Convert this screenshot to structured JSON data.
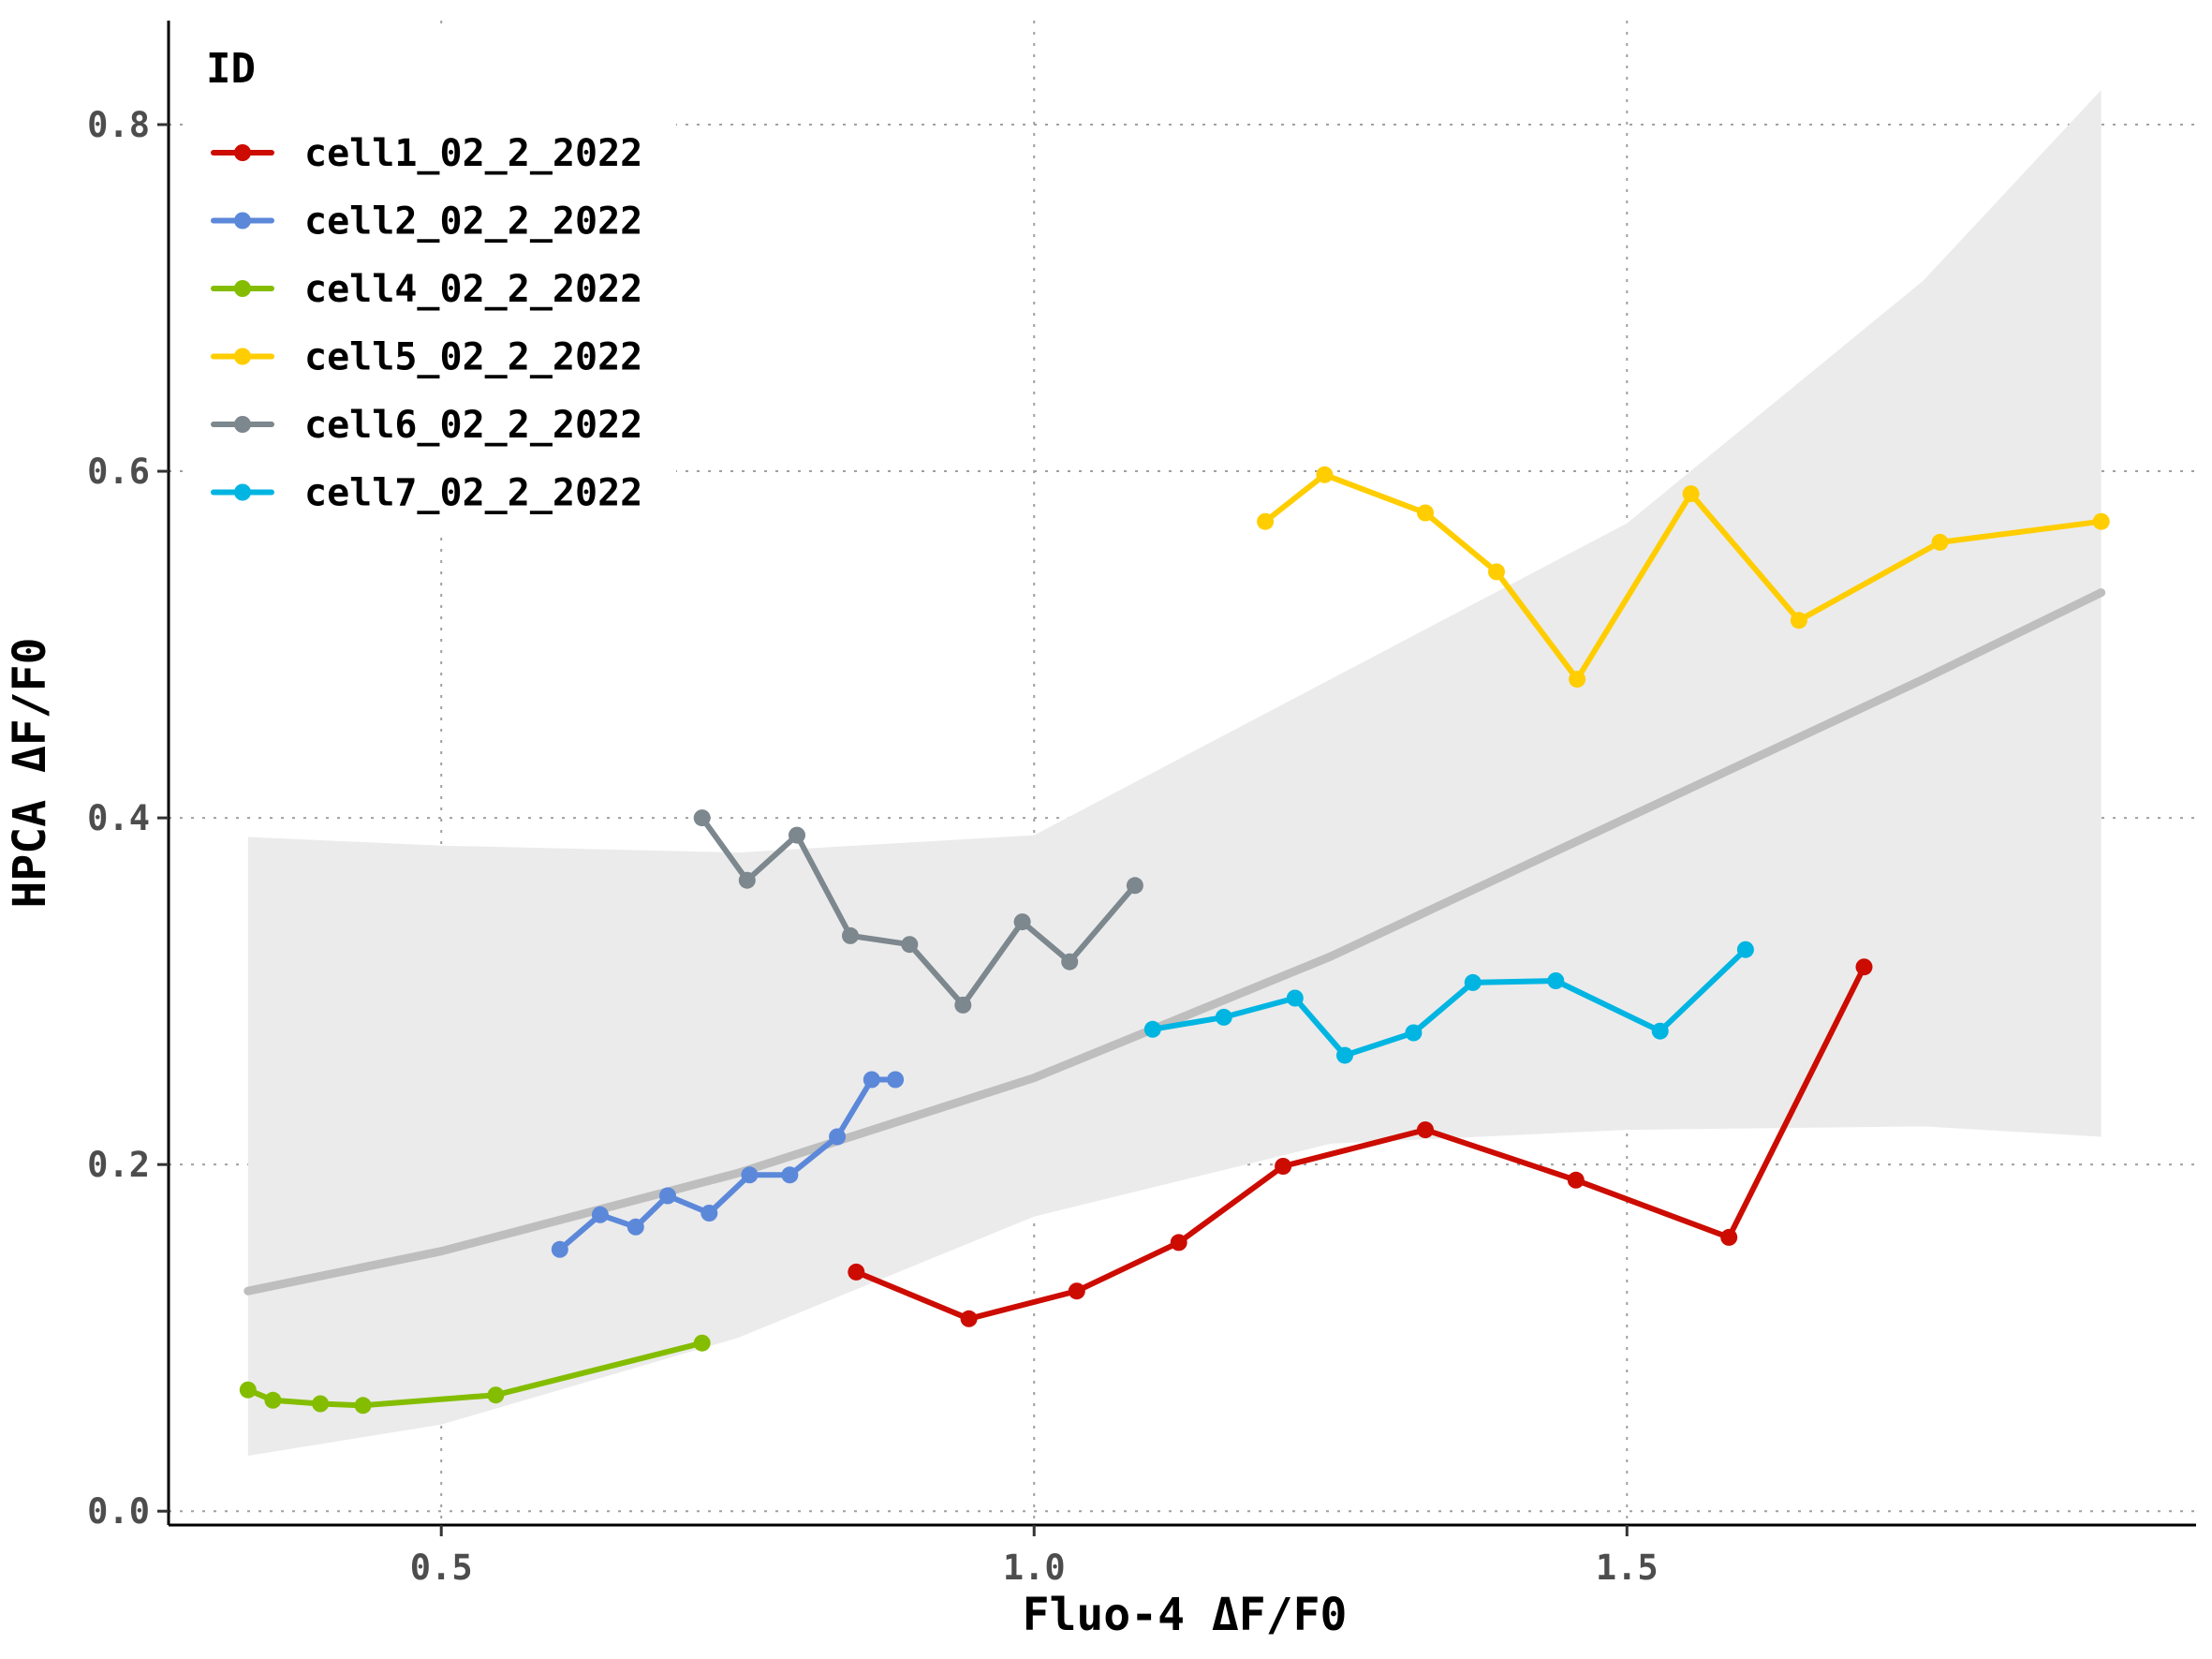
{
  "chart_data": {
    "type": "line",
    "xlabel": "Fluo-4 ΔF/F0",
    "ylabel": "HPCA ΔF/F0",
    "xlim": [
      0.27,
      1.98
    ],
    "ylim": [
      -0.008,
      0.86
    ],
    "x_ticks": [
      0.5,
      1.0,
      1.5
    ],
    "x_tick_labels": [
      "0.5",
      "1.0",
      "1.5"
    ],
    "y_ticks": [
      0.0,
      0.2,
      0.4,
      0.6,
      0.8
    ],
    "y_tick_labels": [
      "0.0",
      "0.2",
      "0.4",
      "0.6",
      "0.8"
    ],
    "grid": "major, dotted",
    "legend": {
      "title": "ID",
      "position": "top-left"
    },
    "series": [
      {
        "name": "cell1_02_2_2022",
        "color": "#cc0c00",
        "x": [
          0.85,
          0.945,
          1.036,
          1.122,
          1.21,
          1.33,
          1.457,
          1.586,
          1.7
        ],
        "y": [
          0.138,
          0.111,
          0.127,
          0.155,
          0.199,
          0.22,
          0.191,
          0.158,
          0.314
        ]
      },
      {
        "name": "cell2_02_2_2022",
        "color": "#5c88da",
        "x": [
          0.6,
          0.634,
          0.664,
          0.691,
          0.726,
          0.76,
          0.794,
          0.834,
          0.863,
          0.883
        ],
        "y": [
          0.151,
          0.171,
          0.164,
          0.182,
          0.172,
          0.194,
          0.194,
          0.216,
          0.249,
          0.249
        ]
      },
      {
        "name": "cell4_02_2_2022",
        "color": "#84bd00",
        "x": [
          0.337,
          0.358,
          0.398,
          0.434,
          0.546,
          0.72
        ],
        "y": [
          0.07,
          0.064,
          0.062,
          0.061,
          0.067,
          0.097
        ]
      },
      {
        "name": "cell5_02_2_2022",
        "color": "#ffcd00",
        "x": [
          1.195,
          1.245,
          1.33,
          1.39,
          1.458,
          1.554,
          1.645,
          1.764,
          1.9
        ],
        "y": [
          0.571,
          0.598,
          0.576,
          0.542,
          0.48,
          0.587,
          0.514,
          0.559,
          0.571
        ]
      },
      {
        "name": "cell6_02_2_2022",
        "color": "#7c878e",
        "x": [
          0.72,
          0.758,
          0.8,
          0.845,
          0.895,
          0.94,
          0.99,
          1.03,
          1.085
        ],
        "y": [
          0.4,
          0.364,
          0.39,
          0.332,
          0.327,
          0.292,
          0.34,
          0.317,
          0.361
        ]
      },
      {
        "name": "cell7_02_2_2022",
        "color": "#00b5e2",
        "x": [
          1.1,
          1.16,
          1.22,
          1.262,
          1.32,
          1.37,
          1.44,
          1.528,
          1.6
        ],
        "y": [
          0.278,
          0.285,
          0.296,
          0.263,
          0.276,
          0.305,
          0.306,
          0.277,
          0.324
        ]
      }
    ],
    "fit": {
      "color": "#bebebe",
      "x": [
        0.337,
        0.5,
        0.75,
        1.0,
        1.25,
        1.5,
        1.75,
        1.9
      ],
      "y": [
        0.127,
        0.15,
        0.195,
        0.25,
        0.32,
        0.4,
        0.48,
        0.53
      ],
      "band_color": "#ebebeb",
      "band_upper": [
        0.389,
        0.384,
        0.38,
        0.39,
        0.48,
        0.57,
        0.71,
        0.82
      ],
      "band_lower": [
        0.032,
        0.05,
        0.1,
        0.17,
        0.212,
        0.22,
        0.222,
        0.216
      ]
    }
  }
}
